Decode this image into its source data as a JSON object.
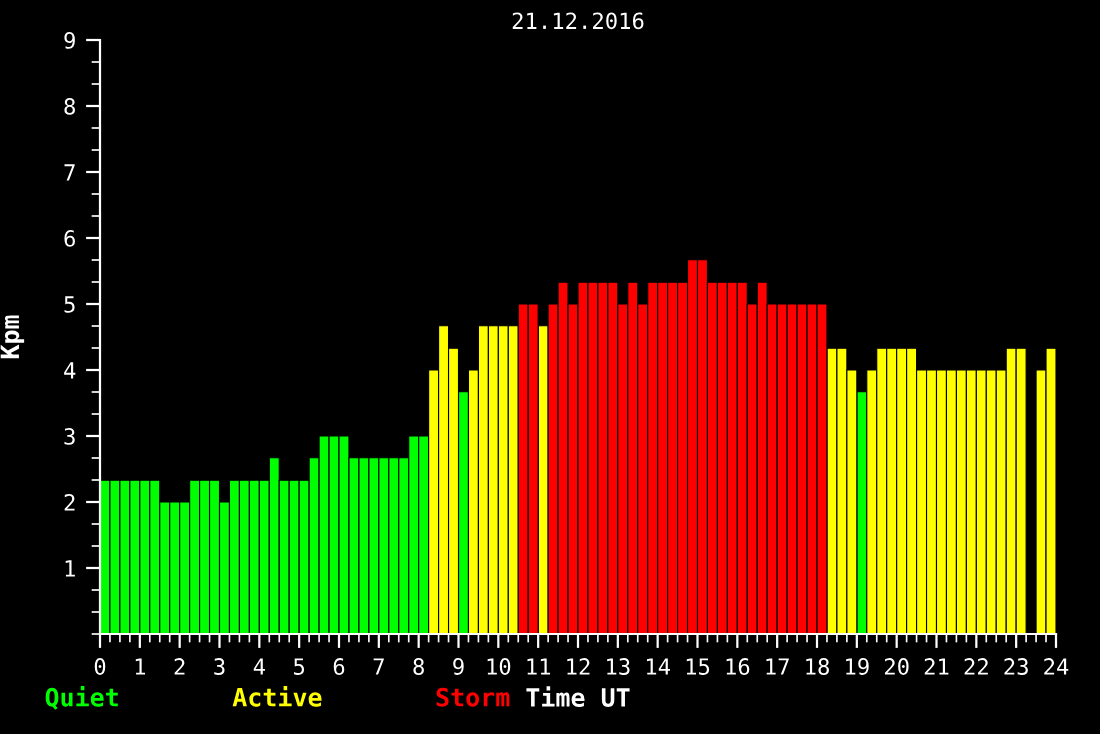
{
  "chart_data": {
    "type": "bar",
    "title": "21.12.2016",
    "xlabel": "Time UT",
    "ylabel": "Kpm",
    "x": [
      0,
      0.25,
      0.5,
      0.75,
      1,
      1.25,
      1.5,
      1.75,
      2,
      2.25,
      2.5,
      2.75,
      3,
      3.25,
      3.5,
      3.75,
      4,
      4.25,
      4.5,
      4.75,
      5,
      5.25,
      5.5,
      5.75,
      6,
      6.25,
      6.5,
      6.75,
      7,
      7.25,
      7.5,
      7.75,
      8,
      8.25,
      8.5,
      8.75,
      9,
      9.25,
      9.5,
      9.75,
      10,
      10.25,
      10.5,
      10.75,
      11,
      11.25,
      11.5,
      11.75,
      12,
      12.25,
      12.5,
      12.75,
      13,
      13.25,
      13.5,
      13.75,
      14,
      14.25,
      14.5,
      14.75,
      15,
      15.25,
      15.5,
      15.75,
      16,
      16.25,
      16.5,
      16.75,
      17,
      17.25,
      17.5,
      17.75,
      18,
      18.25,
      18.5,
      18.75,
      19,
      19.25,
      19.5,
      19.75,
      20,
      20.25,
      20.5,
      20.75,
      21,
      21.25,
      21.5,
      21.75,
      22,
      22.25,
      22.5,
      22.75,
      23,
      23.25,
      23.5,
      23.75
    ],
    "series": [
      {
        "name": "Quiet",
        "color": "#00ff00",
        "values": [
          2.33,
          2.33,
          2.33,
          2.33,
          2.33,
          2.33,
          2.0,
          2.0,
          2.0,
          2.33,
          2.33,
          2.33,
          2.0,
          2.33,
          2.33,
          2.33,
          2.33,
          2.67,
          2.33,
          2.33,
          2.33,
          2.67,
          3.0,
          3.0,
          3.0,
          2.67,
          2.67,
          2.67,
          2.67,
          2.67,
          2.67,
          3.0,
          3.0,
          null,
          null,
          null,
          3.67,
          null,
          null,
          null,
          null,
          null,
          null,
          null,
          null,
          null,
          null,
          null,
          null,
          null,
          null,
          null,
          null,
          null,
          null,
          null,
          null,
          null,
          null,
          null,
          null,
          null,
          null,
          null,
          null,
          null,
          null,
          null,
          null,
          null,
          null,
          null,
          null,
          null,
          null,
          null,
          3.67,
          null,
          null,
          null,
          null,
          null,
          null,
          null,
          null,
          null,
          null,
          null,
          null,
          null,
          null,
          null,
          null,
          null,
          null,
          null
        ]
      },
      {
        "name": "Active",
        "color": "#ffff00",
        "values": [
          null,
          null,
          null,
          null,
          null,
          null,
          null,
          null,
          null,
          null,
          null,
          null,
          null,
          null,
          null,
          null,
          null,
          null,
          null,
          null,
          null,
          null,
          null,
          null,
          null,
          null,
          null,
          null,
          null,
          null,
          null,
          null,
          null,
          4.0,
          4.67,
          4.33,
          null,
          4.0,
          4.67,
          4.67,
          4.67,
          4.67,
          null,
          null,
          4.67,
          null,
          null,
          null,
          null,
          null,
          null,
          null,
          null,
          null,
          null,
          null,
          null,
          null,
          null,
          null,
          null,
          null,
          null,
          null,
          null,
          null,
          null,
          null,
          null,
          null,
          null,
          null,
          null,
          4.33,
          4.33,
          4.0,
          null,
          4.0,
          4.33,
          4.33,
          4.33,
          4.33,
          4.0,
          4.0,
          4.0,
          4.0,
          4.0,
          4.0,
          4.0,
          4.0,
          4.0,
          4.33,
          4.33,
          null,
          4.0,
          4.33
        ]
      },
      {
        "name": "Storm",
        "color": "#ff0000",
        "values": [
          null,
          null,
          null,
          null,
          null,
          null,
          null,
          null,
          null,
          null,
          null,
          null,
          null,
          null,
          null,
          null,
          null,
          null,
          null,
          null,
          null,
          null,
          null,
          null,
          null,
          null,
          null,
          null,
          null,
          null,
          null,
          null,
          null,
          null,
          null,
          null,
          null,
          null,
          null,
          null,
          null,
          null,
          5.0,
          5.0,
          null,
          5.0,
          5.33,
          5.0,
          5.33,
          5.33,
          5.33,
          5.33,
          5.0,
          5.33,
          5.0,
          5.33,
          5.33,
          5.33,
          5.33,
          5.67,
          5.67,
          5.33,
          5.33,
          5.33,
          5.33,
          5.0,
          5.33,
          5.0,
          5.0,
          5.0,
          5.0,
          5.0,
          5.0,
          null,
          null,
          null,
          null,
          null,
          null,
          null,
          null,
          null,
          null,
          null,
          null,
          null,
          null,
          null,
          null,
          null,
          null,
          null,
          null,
          null,
          null,
          null
        ]
      }
    ],
    "xlim": [
      0,
      24
    ],
    "xticks": [
      0,
      1,
      2,
      3,
      4,
      5,
      6,
      7,
      8,
      9,
      10,
      11,
      12,
      13,
      14,
      15,
      16,
      17,
      18,
      19,
      20,
      21,
      22,
      23,
      24
    ],
    "ylim": [
      0,
      9
    ],
    "yticks": [
      1,
      2,
      3,
      4,
      5,
      6,
      7,
      8,
      9
    ],
    "grid": false,
    "legend": "bottom left"
  }
}
